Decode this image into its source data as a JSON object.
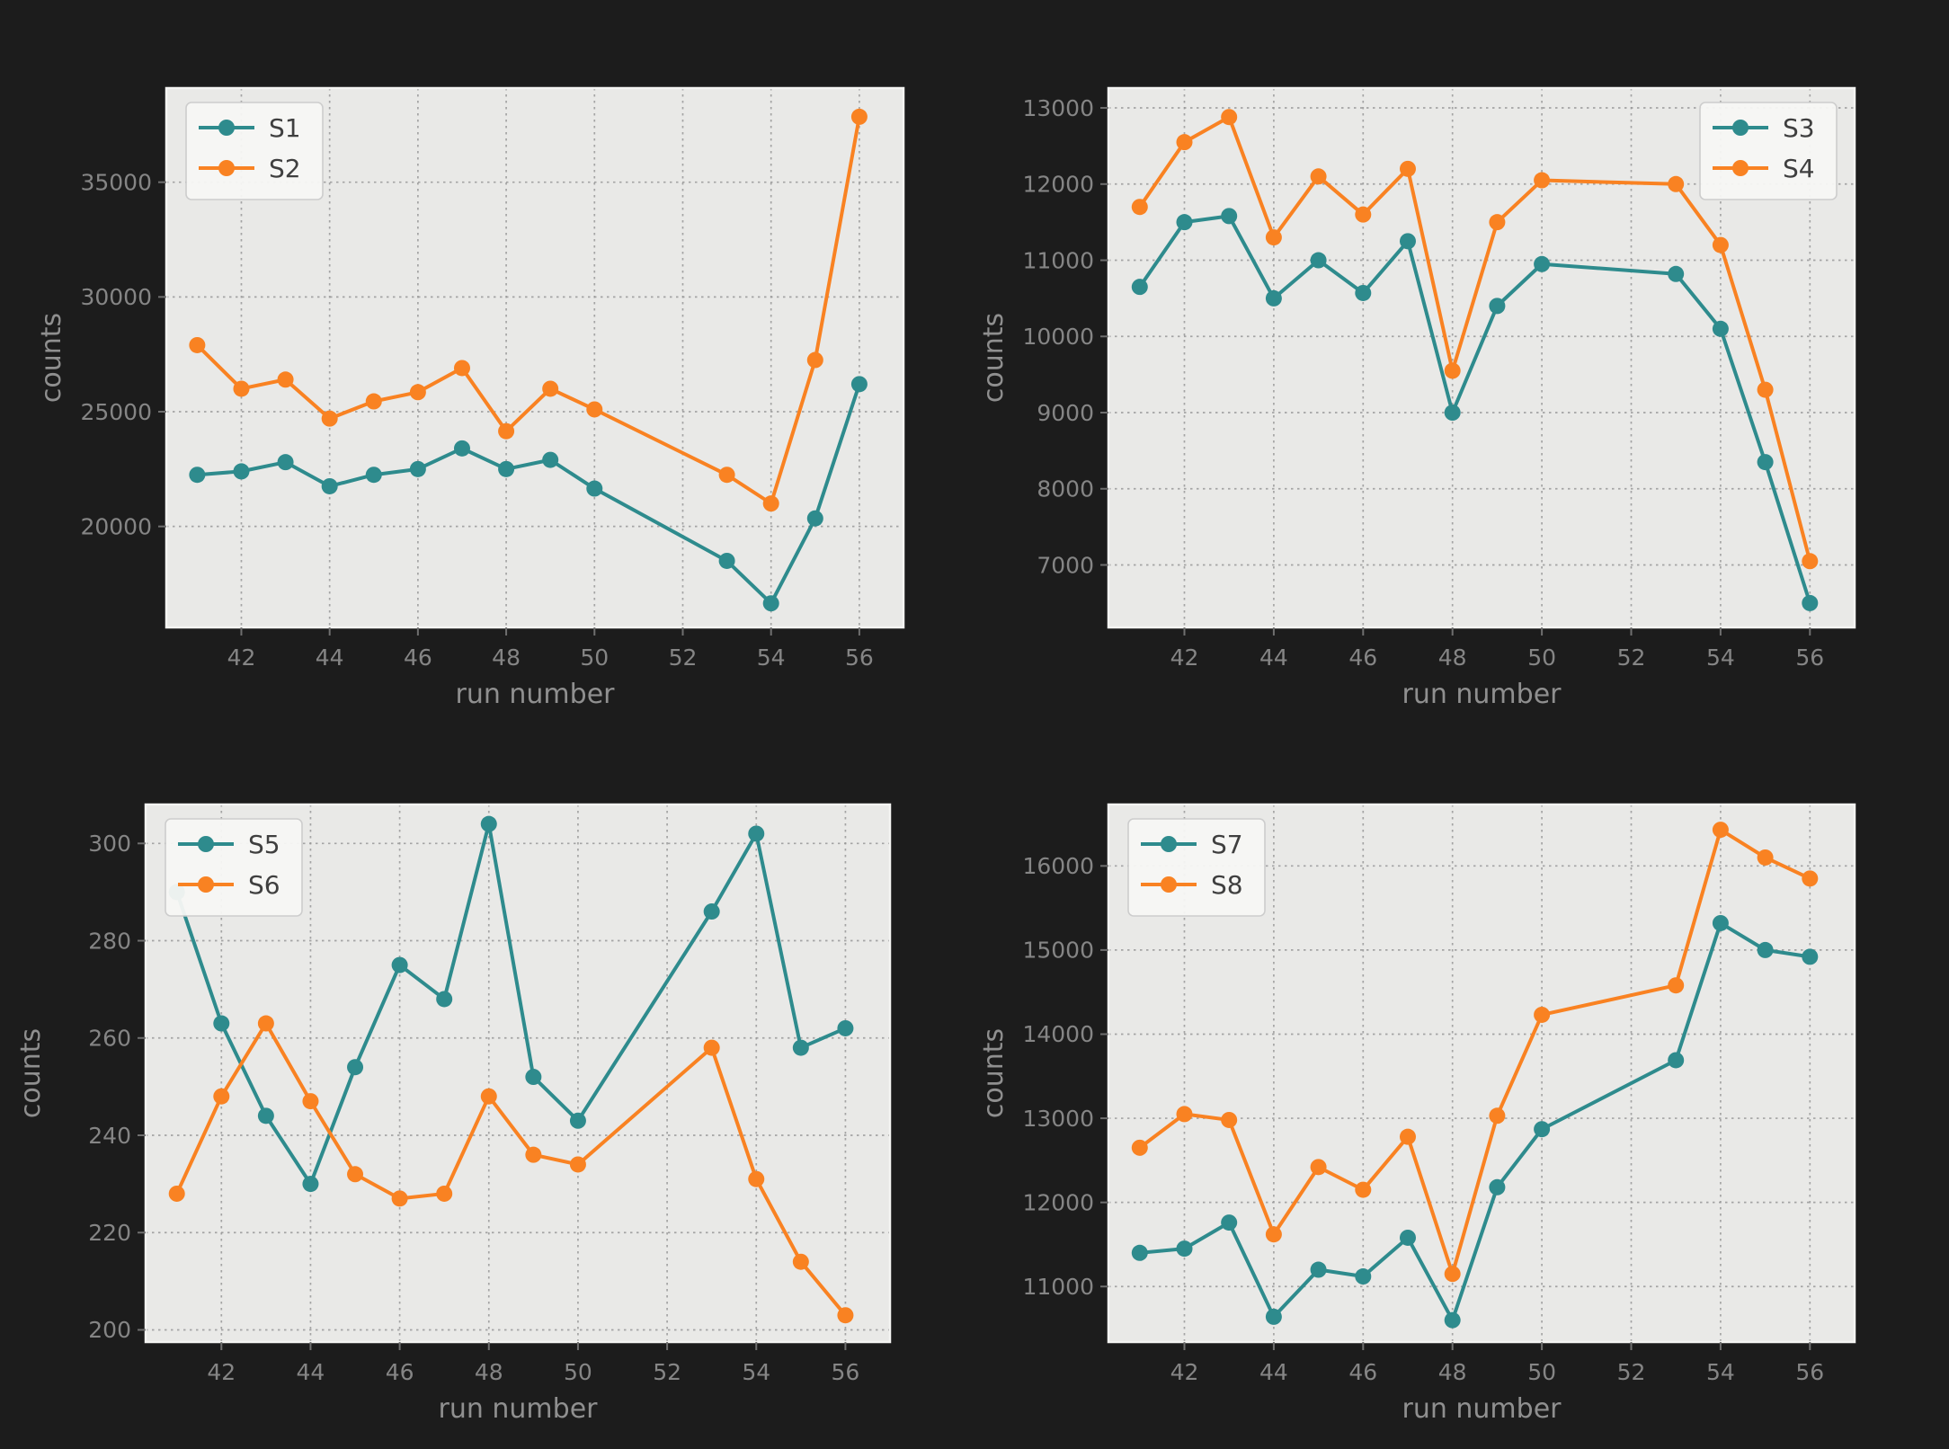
{
  "figure": {
    "background": "#1c1c1c",
    "plot_background": "#e9e9e7",
    "grid_color": "#999999",
    "axes_edge_color": "#f4f4f2",
    "tick_color": "#6f6f6f",
    "tick_label_color": "#858585",
    "axis_label_color": "#8f8f8f",
    "legend_background": "#f7f7f5",
    "legend_border": "#cccccc",
    "legend_text_color": "#3f3f3f",
    "series_colors": {
      "teal": "#2e8b8d",
      "orange": "#f98222"
    }
  },
  "chart_data": [
    {
      "type": "line",
      "title": "",
      "xlabel": "run number",
      "ylabel": "counts",
      "grid": true,
      "legend_position": "upper-left",
      "x": [
        41,
        42,
        43,
        44,
        45,
        46,
        47,
        48,
        49,
        50,
        53,
        54,
        55,
        56
      ],
      "xlim": [
        40.3,
        57.0
      ],
      "ylim": [
        15600,
        39100
      ],
      "xticks": [
        42,
        44,
        46,
        48,
        50,
        52,
        54,
        56
      ],
      "yticks": [
        20000,
        25000,
        30000,
        35000
      ],
      "series": [
        {
          "name": "S1",
          "color": "teal",
          "values": [
            22250,
            22400,
            22800,
            21750,
            22250,
            22500,
            23400,
            22500,
            22900,
            21650,
            18500,
            16650,
            20350,
            26200
          ]
        },
        {
          "name": "S2",
          "color": "orange",
          "values": [
            27900,
            26000,
            26400,
            24700,
            25450,
            25850,
            26900,
            24150,
            26000,
            25100,
            22250,
            21000,
            27250,
            37850
          ]
        }
      ]
    },
    {
      "type": "line",
      "title": "",
      "xlabel": "run number",
      "ylabel": "counts",
      "grid": true,
      "legend_position": "upper-right",
      "x": [
        41,
        42,
        43,
        44,
        45,
        46,
        47,
        48,
        49,
        50,
        53,
        54,
        55,
        56
      ],
      "xlim": [
        40.3,
        57.0
      ],
      "ylim": [
        6180,
        13260
      ],
      "xticks": [
        42,
        44,
        46,
        48,
        50,
        52,
        54,
        56
      ],
      "yticks": [
        7000,
        8000,
        9000,
        10000,
        11000,
        12000,
        13000
      ],
      "series": [
        {
          "name": "S3",
          "color": "teal",
          "values": [
            10650,
            11500,
            11580,
            10500,
            11000,
            10570,
            11250,
            9000,
            10400,
            10950,
            10820,
            10100,
            8350,
            6500
          ]
        },
        {
          "name": "S4",
          "color": "orange",
          "values": [
            11700,
            12550,
            12880,
            11300,
            12100,
            11600,
            12200,
            9550,
            11500,
            12050,
            12000,
            11200,
            9300,
            7050
          ]
        }
      ]
    },
    {
      "type": "line",
      "title": "",
      "xlabel": "run number",
      "ylabel": "counts",
      "grid": true,
      "legend_position": "upper-left",
      "x": [
        41,
        42,
        43,
        44,
        45,
        46,
        47,
        48,
        49,
        50,
        53,
        54,
        55,
        56
      ],
      "xlim": [
        40.3,
        57.0
      ],
      "ylim": [
        197.5,
        308
      ],
      "xticks": [
        42,
        44,
        46,
        48,
        50,
        52,
        54,
        56
      ],
      "yticks": [
        200,
        220,
        240,
        260,
        280,
        300
      ],
      "series": [
        {
          "name": "S5",
          "color": "teal",
          "values": [
            290,
            263,
            244,
            230,
            254,
            275,
            268,
            304,
            252,
            243,
            286,
            302,
            258,
            262
          ]
        },
        {
          "name": "S6",
          "color": "orange",
          "values": [
            228,
            248,
            263,
            247,
            232,
            227,
            228,
            248,
            236,
            234,
            258,
            231,
            214,
            203
          ]
        }
      ]
    },
    {
      "type": "line",
      "title": "",
      "xlabel": "run number",
      "ylabel": "counts",
      "grid": true,
      "legend_position": "upper-left",
      "x": [
        41,
        42,
        43,
        44,
        45,
        46,
        47,
        48,
        49,
        50,
        53,
        54,
        55,
        56
      ],
      "xlim": [
        40.3,
        57.0
      ],
      "ylim": [
        10340,
        16730
      ],
      "xticks": [
        42,
        44,
        46,
        48,
        50,
        52,
        54,
        56
      ],
      "yticks": [
        11000,
        12000,
        13000,
        14000,
        15000,
        16000
      ],
      "series": [
        {
          "name": "S7",
          "color": "teal",
          "values": [
            11400,
            11450,
            11760,
            10640,
            11200,
            11120,
            11580,
            10600,
            12180,
            12870,
            13690,
            15320,
            15000,
            14920
          ]
        },
        {
          "name": "S8",
          "color": "orange",
          "values": [
            12650,
            13050,
            12980,
            11620,
            12420,
            12150,
            12780,
            11150,
            13030,
            14230,
            14580,
            16430,
            16100,
            15850
          ]
        }
      ]
    }
  ]
}
